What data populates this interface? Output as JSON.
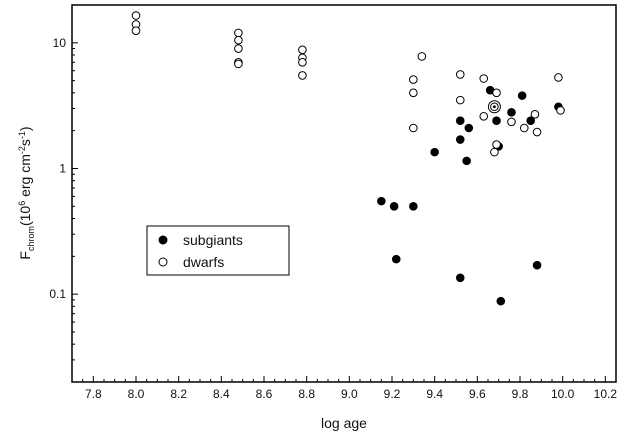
{
  "chart_data": {
    "type": "scatter",
    "xlabel": "log age",
    "ylabel": {
      "main": "F",
      "sub": "chrom",
      "unit_open": "(10",
      "unit_exp1": "6",
      "unit_mid1": " erg cm",
      "unit_exp2": "-2",
      "unit_mid2": "s",
      "unit_exp3": "-1",
      "unit_close": ")"
    },
    "xlim": [
      7.7,
      10.25
    ],
    "ylim": [
      0.02,
      20
    ],
    "yscale": "log",
    "grid": false,
    "legend_position": "center-left",
    "xticks": [
      "7.8",
      "8.0",
      "8.2",
      "8.4",
      "8.6",
      "8.8",
      "9.0",
      "9.2",
      "9.4",
      "9.6",
      "9.8",
      "10.0",
      "10.2"
    ],
    "yticks": [
      "0.1",
      "1",
      "10"
    ],
    "series": [
      {
        "name": "subgiants",
        "marker": "filled-circle",
        "points": [
          [
            9.15,
            0.55
          ],
          [
            9.21,
            0.5
          ],
          [
            9.3,
            0.5
          ],
          [
            9.22,
            0.19
          ],
          [
            9.4,
            1.35
          ],
          [
            9.52,
            2.4
          ],
          [
            9.52,
            1.7
          ],
          [
            9.56,
            2.1
          ],
          [
            9.55,
            1.15
          ],
          [
            9.52,
            0.135
          ],
          [
            9.66,
            4.2
          ],
          [
            9.69,
            2.4
          ],
          [
            9.7,
            1.5
          ],
          [
            9.71,
            0.088
          ],
          [
            9.76,
            2.8
          ],
          [
            9.81,
            3.8
          ],
          [
            9.85,
            2.4
          ],
          [
            9.88,
            0.17
          ],
          [
            9.98,
            3.1
          ]
        ]
      },
      {
        "name": "dwarfs",
        "marker": "open-circle",
        "points": [
          [
            8.0,
            16.5
          ],
          [
            8.0,
            14.0
          ],
          [
            8.0,
            12.5
          ],
          [
            8.48,
            12.0
          ],
          [
            8.48,
            10.5
          ],
          [
            8.48,
            9.0
          ],
          [
            8.48,
            7.0
          ],
          [
            8.48,
            6.8
          ],
          [
            8.78,
            8.8
          ],
          [
            8.78,
            7.6
          ],
          [
            8.78,
            7.0
          ],
          [
            8.78,
            5.5
          ],
          [
            9.3,
            5.1
          ],
          [
            9.3,
            4.0
          ],
          [
            9.3,
            2.1
          ],
          [
            9.34,
            7.8
          ],
          [
            9.52,
            5.6
          ],
          [
            9.52,
            3.5
          ],
          [
            9.63,
            5.2
          ],
          [
            9.63,
            2.6
          ],
          [
            9.68,
            3.1
          ],
          [
            9.69,
            4.0
          ],
          [
            9.69,
            1.55
          ],
          [
            9.68,
            1.35
          ],
          [
            9.76,
            2.35
          ],
          [
            9.82,
            2.1
          ],
          [
            9.87,
            2.7
          ],
          [
            9.88,
            1.95
          ],
          [
            9.98,
            5.3
          ],
          [
            9.99,
            2.9
          ]
        ]
      }
    ],
    "annotations": [
      {
        "type": "sun-symbol",
        "point": [
          9.68,
          3.1
        ]
      }
    ]
  }
}
